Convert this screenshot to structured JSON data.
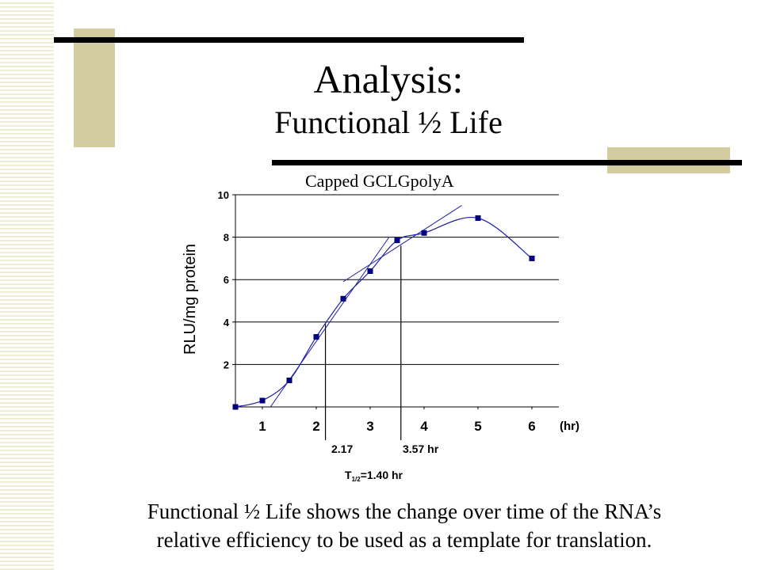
{
  "slide": {
    "title": "Analysis:",
    "subtitle": "Functional ½ Life",
    "caption_line1": "Functional ½ Life shows the change over time of the RNA’s",
    "caption_line2": "relative efficiency to be used as a template for translation."
  },
  "colors": {
    "accent_block": "#d2cca0",
    "bars": "#000000",
    "points": "#000080",
    "curve": "#1f1fa8"
  },
  "chart_data": {
    "type": "scatter",
    "title": "Capped GCLGpolyA",
    "ylabel": "RLU/mg protein",
    "xlabel": "(hr)",
    "x_ticks": [
      "1",
      "2",
      "3",
      "4",
      "5",
      "6"
    ],
    "y_ticks": [
      "2",
      "4",
      "6",
      "8",
      "10"
    ],
    "xlim": [
      0.5,
      6.5
    ],
    "ylim": [
      0,
      10
    ],
    "grid": true,
    "series": [
      {
        "points": [
          [
            0.5,
            0.0
          ],
          [
            1.0,
            0.3
          ],
          [
            1.5,
            1.25
          ],
          [
            2.0,
            3.3
          ],
          [
            2.5,
            5.1
          ],
          [
            3.0,
            6.4
          ],
          [
            3.5,
            7.85
          ],
          [
            4.0,
            8.2
          ],
          [
            5.0,
            8.9
          ],
          [
            6.0,
            7.0
          ]
        ]
      }
    ],
    "annotations": {
      "marker1_label": "2.17",
      "marker2_label": "3.57 hr",
      "marker1_x": 2.17,
      "marker2_x": 3.57,
      "half_life_prefix": "T",
      "half_life_sub": "1/2",
      "half_life_value": "=1.40 hr"
    }
  }
}
